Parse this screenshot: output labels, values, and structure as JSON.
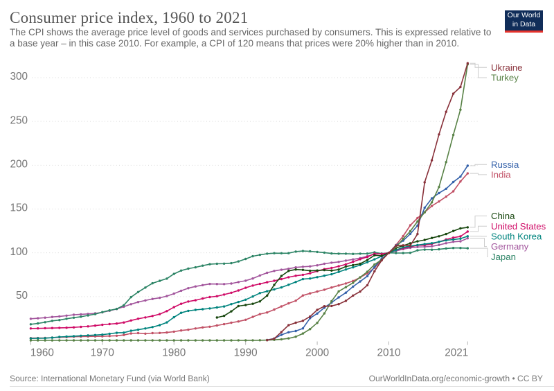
{
  "header": {
    "title": "Consumer price index, 1960 to 2021",
    "subtitle_lines": [
      "The CPI shows the average price level of goods and services purchased by consumers. This is expressed relative to",
      "a base year – in this case 2010. For example, a CPI of 120 means that prices were 20% higher than in 2010."
    ]
  },
  "logo": {
    "line1": "Our World",
    "line2": "in Data",
    "bg_color": "#102D59",
    "stripe_color": "#E5332C"
  },
  "footer": {
    "source": "Source: International Monetary Fund (via World Bank)",
    "credit": "OurWorldInData.org/economic-growth • CC BY"
  },
  "chart_data": {
    "type": "line",
    "title": "Consumer price index, 1960 to 2021",
    "xlabel": "",
    "ylabel": "",
    "x_range": [
      1960,
      2021
    ],
    "x_ticks": [
      1960,
      1970,
      1980,
      1990,
      2000,
      2010,
      2021
    ],
    "y_ticks": [
      50,
      100,
      150,
      200,
      250,
      300
    ],
    "ylim": [
      0,
      320
    ],
    "grid": true,
    "legend_position": "right",
    "base_year_note": "2010 = 100",
    "series": [
      {
        "name": "Ukraine",
        "color": "#883039",
        "start_year": 1993,
        "values": [
          0.2,
          2.0,
          9.6,
          17.3,
          20.2,
          22.4,
          27.2,
          34.8,
          39.0,
          39.3,
          41.4,
          45.1,
          51.2,
          55.8,
          63.0,
          78.9,
          91.4,
          100,
          108.0,
          108.6,
          108.3,
          121.4,
          180.5,
          205.6,
          235.2,
          261.1,
          281.7,
          289.3,
          316.5
        ]
      },
      {
        "name": "Turkey",
        "color": "#578145",
        "start_year": 1960,
        "values": [
          0.0001,
          0.0001,
          0.0001,
          0.0001,
          0.0001,
          0.0001,
          0.0001,
          0.0001,
          0.0002,
          0.0002,
          0.0002,
          0.0002,
          0.0003,
          0.0004,
          0.0005,
          0.0006,
          0.0009,
          0.0012,
          0.0017,
          0.0025,
          0.0035,
          0.0041,
          0.0049,
          0.0057,
          0.0068,
          0.008,
          0.011,
          0.015,
          0.026,
          0.042,
          0.068,
          0.11,
          0.19,
          0.32,
          0.67,
          1.3,
          2.3,
          4.2,
          7.8,
          12.9,
          20.0,
          30.8,
          44.7,
          56.0,
          60.8,
          65.8,
          72.1,
          78.4,
          86.6,
          92.1,
          100,
          106.5,
          116.0,
          124.7,
          135.8,
          146.2,
          157.6,
          175.1,
          203.6,
          234.6,
          263.4,
          315.1
        ]
      },
      {
        "name": "Russia",
        "color": "#3360A9",
        "start_year": 1993,
        "values": [
          0.5,
          2.1,
          6.3,
          9.3,
          10.7,
          13.7,
          25.4,
          30.7,
          37.3,
          43.2,
          49.1,
          54.5,
          61.4,
          67.3,
          73.4,
          83.7,
          93.5,
          100,
          108.4,
          113.9,
          121.6,
          131.1,
          151.4,
          162.2,
          168.2,
          173.1,
          180.9,
          187.0,
          199.5
        ]
      },
      {
        "name": "India",
        "color": "#C15065",
        "start_year": 1960,
        "values": [
          2.6,
          2.7,
          2.8,
          3.13,
          3.5,
          3.8,
          4.2,
          4.35,
          4.5,
          4.6,
          4.7,
          4.99,
          5.3,
          6.2,
          7.9,
          8.3,
          7.7,
          8.3,
          8.5,
          9.0,
          10.0,
          11.3,
          12.2,
          13.6,
          14.8,
          15.6,
          17.0,
          18.5,
          20.2,
          21.6,
          23.5,
          26.8,
          30.0,
          31.9,
          35.2,
          38.8,
          42.3,
          45.3,
          51.3,
          53.7,
          55.8,
          57.9,
          60.4,
          62.7,
          65.0,
          67.8,
          71.9,
          76.5,
          82.9,
          91.9,
          100,
          108.9,
          119.1,
          131.4,
          139.7,
          146.3,
          153.5,
          158.6,
          164.1,
          170.2,
          181.4,
          190.7
        ]
      },
      {
        "name": "China",
        "color": "#18470F",
        "start_year": 1986,
        "values": [
          26.1,
          28.0,
          33.2,
          39.2,
          40.4,
          41.8,
          44.5,
          51.1,
          63.4,
          73.5,
          79.3,
          81.0,
          80.5,
          79.5,
          79.8,
          80.3,
          79.7,
          80.9,
          84.3,
          86.0,
          87.5,
          91.8,
          97.2,
          96.6,
          100,
          105.4,
          108.1,
          110.9,
          113.1,
          114.7,
          117.0,
          118.9,
          121.4,
          124.9,
          127.9,
          129.1
        ]
      },
      {
        "name": "United States",
        "color": "#CF0A66",
        "start_year": 1960,
        "values": [
          13.6,
          13.7,
          13.9,
          14.1,
          14.3,
          14.5,
          14.9,
          15.4,
          16.0,
          16.9,
          17.8,
          18.6,
          19.2,
          20.4,
          22.7,
          24.7,
          26.2,
          27.9,
          30.0,
          33.4,
          37.9,
          41.8,
          44.4,
          45.8,
          47.8,
          49.5,
          50.4,
          52.3,
          54.4,
          57.0,
          60.1,
          62.6,
          64.5,
          66.4,
          68.1,
          70.0,
          72.1,
          73.8,
          74.9,
          76.6,
          79.1,
          81.4,
          82.7,
          84.6,
          86.8,
          89.8,
          92.7,
          95.3,
          99.0,
          98.6,
          100,
          103.2,
          105.3,
          106.8,
          108.6,
          108.7,
          110.1,
          112.4,
          115.2,
          117.3,
          118.7,
          124.3
        ]
      },
      {
        "name": "South Korea",
        "color": "#00847E",
        "start_year": 1960,
        "values": [
          2.2,
          2.37,
          2.55,
          3.05,
          3.95,
          4.35,
          4.8,
          5.3,
          5.7,
          6.13,
          6.6,
          7.53,
          8.6,
          8.9,
          11.0,
          12.2,
          13.62,
          15.2,
          17.4,
          20.5,
          26.4,
          31.5,
          33.7,
          34.8,
          35.64,
          36.5,
          37.58,
          38.7,
          41.4,
          43.88,
          46.5,
          50.11,
          54.0,
          56.09,
          58.25,
          60.5,
          63.51,
          66.68,
          70.0,
          70.6,
          72.2,
          73.83,
          75.5,
          78.2,
          81.0,
          83.46,
          86.0,
          89.19,
          92.5,
          96.18,
          100,
          103.1,
          106.3,
          107.59,
          108.9,
          109.94,
          111.0,
          112.59,
          114.2,
          115.15,
          116.1,
          118.9
        ]
      },
      {
        "name": "Germany",
        "color": "#A2559C",
        "start_year": 1960,
        "values": [
          24.71,
          25.28,
          25.99,
          26.77,
          27.41,
          28.29,
          29.28,
          29.78,
          30.22,
          30.9,
          32.06,
          33.84,
          35.82,
          38.49,
          41.31,
          43.75,
          45.63,
          47.32,
          48.6,
          50.59,
          53.32,
          56.68,
          59.63,
          61.6,
          63.08,
          64.4,
          64.34,
          64.29,
          64.94,
          66.57,
          68.17,
          70.7,
          74.09,
          77.21,
          79.29,
          80.64,
          81.77,
          83.32,
          84.07,
          84.58,
          85.76,
          87.48,
          88.7,
          89.59,
          91.11,
          92.48,
          93.96,
          96.12,
          98.62,
          98.91,
          100.0,
          102.1,
          104.14,
          105.7,
          106.66,
          106.87,
          107.4,
          109.01,
          110.98,
          112.53,
          113.09,
          116.6
        ]
      },
      {
        "name": "Japan",
        "color": "#2C8465",
        "start_year": 1960,
        "values": [
          18.4,
          19.4,
          20.7,
          22.3,
          23.2,
          24.7,
          26.0,
          27.0,
          28.5,
          30.0,
          32.3,
          34.3,
          35.9,
          40.1,
          49.4,
          55.2,
          60.3,
          65.2,
          68.0,
          70.5,
          75.9,
          79.7,
          81.9,
          83.4,
          85.3,
          87.0,
          87.5,
          87.6,
          88.2,
          90.2,
          93.0,
          96.1,
          97.7,
          99.0,
          99.6,
          99.5,
          99.6,
          101.4,
          102.0,
          101.7,
          101.0,
          100.2,
          99.3,
          99.0,
          99.0,
          98.7,
          99.0,
          99.1,
          100.5,
          99.1,
          100,
          99.7,
          99.7,
          100.0,
          102.8,
          103.6,
          103.5,
          104.0,
          105.0,
          105.5,
          105.5,
          105.2
        ]
      }
    ]
  }
}
